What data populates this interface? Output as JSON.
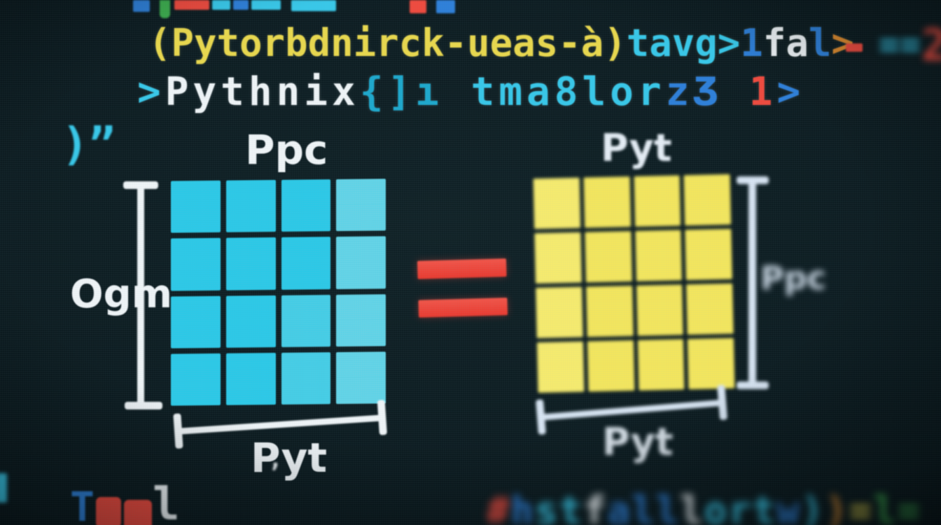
{
  "scene": "photographed code-editor screen showing a matrix equality diagram",
  "colors": {
    "background": "#0d1c21",
    "cyan": "#38c7e8",
    "teal": "#1ea8cc",
    "blue": "#2e7fd8",
    "yellow": "#e8d74d",
    "red": "#ee4a3e",
    "orange": "#dd8a2e",
    "white": "#eef3f6",
    "green": "#3dae4e",
    "matrix_left_fill": "#29c7e6",
    "matrix_right_fill": "#f2e55e",
    "bracket": "#eef3f6",
    "equals": "#ee4a3e"
  },
  "code": {
    "top_fragments": [
      {
        "color": "blue"
      },
      {
        "color": "green"
      },
      {
        "color": "red"
      },
      {
        "color": "cyan"
      },
      {
        "color": "blue"
      },
      {
        "color": "cyan"
      },
      {
        "color": "cyan"
      },
      {
        "color": "red"
      },
      {
        "color": "blue"
      },
      {
        "color": "cyan"
      }
    ],
    "line1": {
      "tokens": [
        {
          "text": "(Pytorbdnirck-ueas-à)",
          "color": "yellow"
        },
        {
          "text": "tavg>",
          "color": "cyan"
        },
        {
          "text": "1",
          "color": "blue"
        },
        {
          "text": "fa",
          "color": "white"
        },
        {
          "text": "l",
          "color": "blue"
        },
        {
          "text": ">",
          "color": "orange"
        }
      ],
      "tail": [
        {
          "text": "-",
          "color": "red"
        },
        {
          "text": "==",
          "color": "cyan"
        },
        {
          "text": "2",
          "color": "red"
        }
      ]
    },
    "line2": {
      "tokens": [
        {
          "text": ">",
          "color": "cyan"
        },
        {
          "text": "Pythnix",
          "color": "white"
        },
        {
          "text": "{]ı",
          "color": "teal"
        },
        {
          "text": " tma8lor",
          "color": "cyan"
        },
        {
          "text": "zƷ",
          "color": "blue"
        },
        {
          "text": " 1",
          "color": "red"
        },
        {
          "text": ">",
          "color": "blue"
        }
      ]
    },
    "line3": {
      "tokens": [
        {
          "text": ")”",
          "color": "cyan"
        }
      ]
    },
    "bottom_left": {
      "t": {
        "text": "T",
        "color": "blue"
      },
      "l": {
        "text": "l",
        "color": "white"
      },
      "apostrophe": {
        "text": "’",
        "color": "white"
      },
      "red_squares": 2
    },
    "bottom_right": {
      "tokens": [
        {
          "text": "#",
          "color": "red"
        },
        {
          "text": "h",
          "color": "blue"
        },
        {
          "text": "st",
          "color": "cyan"
        },
        {
          "text": "f",
          "color": "white"
        },
        {
          "text": "all",
          "color": "blue"
        },
        {
          "text": "l",
          "color": "white"
        },
        {
          "text": "ort",
          "color": "cyan"
        },
        {
          "text": "w",
          "color": "blue"
        },
        {
          "text": ")",
          "color": "cyan"
        },
        {
          "text": ")",
          "color": "orange"
        },
        {
          "text": "=",
          "color": "yellow"
        },
        {
          "text": "l=",
          "color": "green"
        }
      ]
    }
  },
  "diagram": {
    "left_matrix": {
      "rows": 4,
      "cols": 4,
      "fill": "#29c7e6",
      "top_label": "Ppc",
      "left_label": "Ogm",
      "bottom_label": "Pyt"
    },
    "equals_sign": "=",
    "right_matrix": {
      "rows": 4,
      "cols": 4,
      "fill": "#f2e55e",
      "top_label": "Pyt",
      "right_label": "Ppc",
      "bottom_label": "Pyt"
    }
  }
}
